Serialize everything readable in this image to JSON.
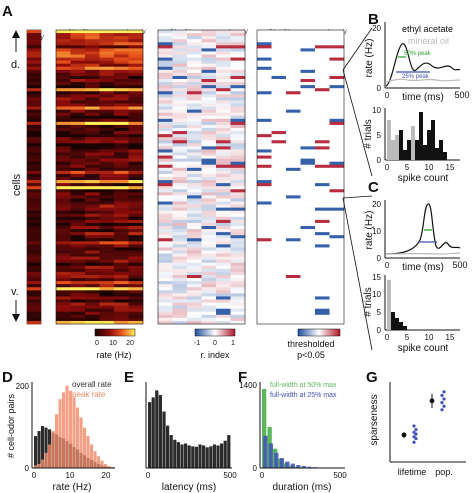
{
  "panel_labels": {
    "A": "A",
    "B": "B",
    "C": "C",
    "D": "D",
    "E": "E",
    "F": "F",
    "G": "G"
  },
  "heatmaps": {
    "mo_label": "m.o.",
    "odor_labels_1": [
      "et. bu.",
      "2-hxn.",
      "is. ac.",
      "hex.",
      "et. tig.",
      "et. ac."
    ],
    "odor_labels_2": [
      "et. bu.",
      "2-hxn.",
      "is. ac.",
      "hex.",
      "et. tig.",
      "et. ac."
    ],
    "odor_labels_3": [
      "et. bu.",
      "2-hxn.",
      "is. ac.",
      "hex.",
      "et. tig.",
      "et. ac."
    ],
    "cells_label": "cells",
    "dorsal_label": "d.",
    "ventral_label": "v.",
    "colorbar_rate": {
      "ticks": [
        "0",
        "10",
        "20"
      ],
      "label": "rate (Hz)"
    },
    "colorbar_rindex": {
      "ticks": [
        "-1",
        "0",
        "1"
      ],
      "label": "r. index"
    },
    "colorbar_thresh": {
      "label": "thresholded",
      "sublabel": "p<0.05"
    },
    "colors": {
      "rate_low": "#2a0404",
      "rate_high": "#ffee55",
      "neg": "#1f4fa0",
      "pos": "#b0152a"
    }
  },
  "panelB": {
    "legend": [
      "ethyl acetate",
      "mineral oil"
    ],
    "annot_50": "50% peak",
    "annot_25": "25% peak",
    "rate_ylabel": "rate (Hz)",
    "rate_xlabel": "time (ms)",
    "rate_yticks": [
      "0",
      "20"
    ],
    "rate_xticks": [
      "0",
      "500"
    ],
    "trials_ylabel": "# trials",
    "trials_xlabel": "spike count",
    "trials_yticks": [
      "0",
      "5",
      "10"
    ],
    "trials_xticks": [
      "0",
      "5",
      "10",
      "15"
    ],
    "colors": {
      "odor": "#111111",
      "oil": "#bbbbbb",
      "p50": "#2ca02c",
      "p25": "#3f51b5"
    }
  },
  "panelC": {
    "rate_ylabel": "rate (Hz)",
    "rate_xlabel": "time (ms)",
    "rate_yticks": [
      "0",
      "10",
      "20"
    ],
    "rate_xticks": [
      "0",
      "500"
    ],
    "trials_ylabel": "# trials",
    "trials_xlabel": "spike count",
    "trials_yticks": [
      "0",
      "5",
      "10",
      "15"
    ],
    "trials_xticks": [
      "0",
      "5",
      "10",
      "15"
    ]
  },
  "chart_data": [
    {
      "type": "bar",
      "panel": "D",
      "ylabel": "# cell-odor pairs",
      "xlabel": "rate (Hz)",
      "yticks": [
        "0",
        "200"
      ],
      "xticks": [
        "0",
        "10",
        "20"
      ],
      "series": [
        {
          "name": "overall rate",
          "color": "#2b2b2b",
          "x": [
            0,
            1,
            2,
            3,
            4,
            5,
            6,
            7,
            8,
            9,
            10,
            11,
            12,
            13,
            14,
            15,
            16,
            17,
            18,
            19,
            20,
            21,
            22
          ],
          "values": [
            95,
            110,
            125,
            120,
            115,
            105,
            100,
            92,
            88,
            80,
            72,
            62,
            55,
            45,
            38,
            30,
            24,
            18,
            12,
            8,
            5,
            3,
            2
          ]
        },
        {
          "name": "peak rate",
          "color": "#f08866",
          "x": [
            0,
            1,
            2,
            3,
            4,
            5,
            6,
            7,
            8,
            9,
            10,
            11,
            12,
            13,
            14,
            15,
            16,
            17,
            18,
            19,
            20,
            21,
            22
          ],
          "values": [
            8,
            12,
            25,
            45,
            70,
            110,
            160,
            205,
            225,
            245,
            230,
            210,
            180,
            150,
            120,
            95,
            70,
            50,
            35,
            22,
            12,
            6,
            3
          ]
        }
      ]
    },
    {
      "type": "bar",
      "panel": "E",
      "xlabel": "latency (ms)",
      "xticks": [
        "0",
        "500"
      ],
      "values": [
        140,
        150,
        165,
        155,
        120,
        90,
        70,
        60,
        55,
        50,
        52,
        48,
        46,
        45,
        50,
        48,
        44,
        46,
        50,
        48,
        52,
        58,
        70
      ]
    },
    {
      "type": "bar",
      "panel": "F",
      "xlabel": "duration (ms)",
      "yticks": [
        "0",
        "1400"
      ],
      "xticks": [
        "0",
        "500"
      ],
      "series": [
        {
          "name": "full-width at 50% max",
          "color": "#5cb85c",
          "values": [
            1350,
            700,
            330,
            160,
            80,
            40,
            20,
            10,
            5,
            3,
            2,
            1
          ]
        },
        {
          "name": "full-width at 25% max",
          "color": "#3f51b5",
          "values": [
            550,
            420,
            260,
            170,
            110,
            75,
            50,
            35,
            22,
            14,
            8,
            5
          ]
        }
      ]
    },
    {
      "type": "scatter",
      "panel": "G",
      "ylabel": "sparseness",
      "categories": [
        "lifetime",
        "pop."
      ],
      "points": [
        {
          "cat": "lifetime",
          "mean": 0.3,
          "err": 0.03,
          "dots": [
            0.22,
            0.26,
            0.28,
            0.31,
            0.33,
            0.36,
            0.4
          ]
        },
        {
          "cat": "pop.",
          "mean": 0.68,
          "err": 0.08,
          "dots": [
            0.58,
            0.62,
            0.66,
            0.7,
            0.74,
            0.78
          ]
        }
      ]
    }
  ]
}
